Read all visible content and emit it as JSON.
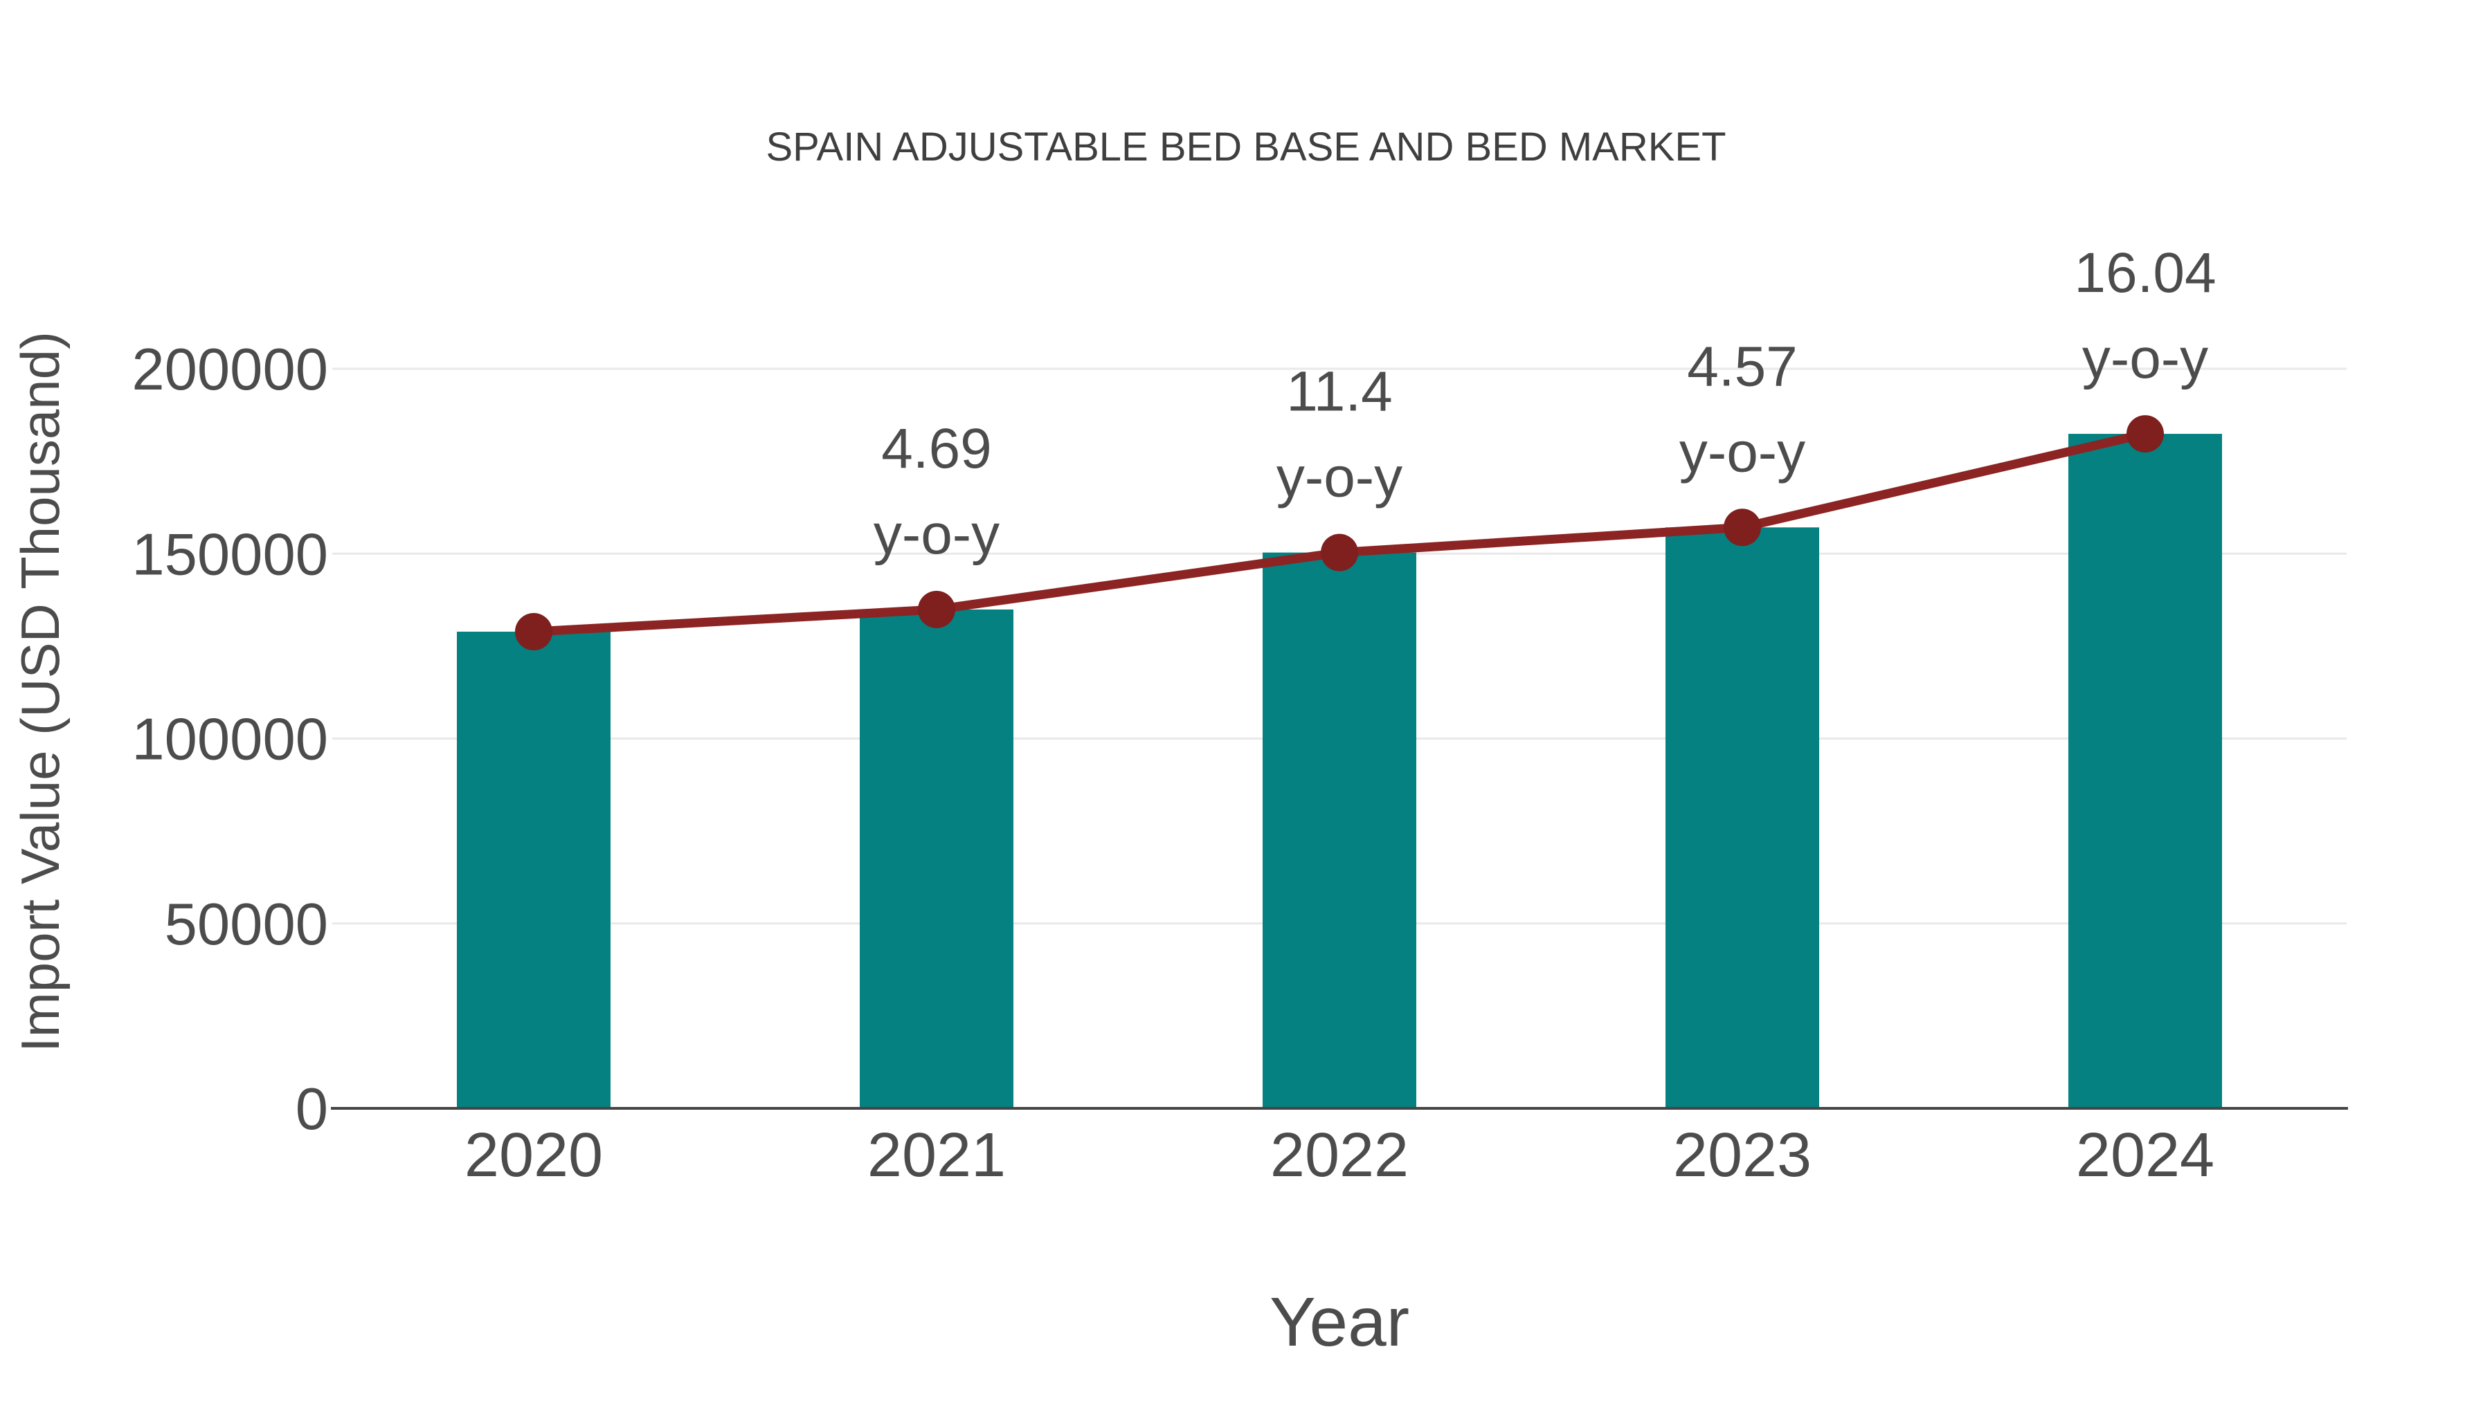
{
  "chart_data": {
    "type": "bar+line",
    "title": "SPAIN ADJUSTABLE BED BASE AND BED MARKET",
    "xlabel": "Year",
    "ylabel": "Import Value (USD Thousand)",
    "categories": [
      "2020",
      "2021",
      "2022",
      "2023",
      "2024"
    ],
    "series": [
      {
        "name": "Import Value",
        "type": "bar",
        "values": [
          128900,
          134900,
          150300,
          157100,
          182400
        ]
      },
      {
        "name": "Trend",
        "type": "line",
        "values": [
          128900,
          134900,
          150300,
          157100,
          182400
        ]
      }
    ],
    "annotations": [
      {
        "category": "2021",
        "line1": "4.69",
        "line2": "y-o-y"
      },
      {
        "category": "2022",
        "line1": "11.4",
        "line2": "y-o-y"
      },
      {
        "category": "2023",
        "line1": "4.57",
        "line2": "y-o-y"
      },
      {
        "category": "2024",
        "line1": "16.04",
        "line2": "y-o-y"
      }
    ],
    "ylim": [
      0,
      200000
    ],
    "yticks": [
      0,
      50000,
      100000,
      150000,
      200000
    ],
    "grid": true,
    "legend_position": "none"
  },
  "colors": {
    "bar": "#048180",
    "line": "#8b2423",
    "marker": "#7f1f1e",
    "grid": "#e9e9e9",
    "axis": "#454545",
    "text": "#4c4c4c",
    "title": "#3f3f3f",
    "background": "#ffffff"
  }
}
